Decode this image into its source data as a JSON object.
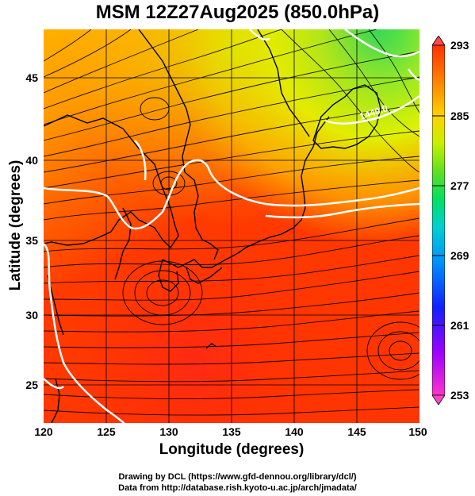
{
  "title": "MSM 12Z27Aug2025 (850.0hPa)",
  "xaxis": {
    "label": "Longitude (degrees)",
    "ticks": [
      "120",
      "125",
      "130",
      "135",
      "140",
      "145",
      "150"
    ],
    "range": [
      120,
      150
    ]
  },
  "yaxis": {
    "label": "Latitude  (degrees)",
    "ticks": [
      "25",
      "30",
      "35",
      "40",
      "45"
    ],
    "range": [
      22.4,
      47.6
    ]
  },
  "colorbar": {
    "ticks": [
      "293",
      "285",
      "277",
      "269",
      "261",
      "253"
    ],
    "range": [
      253,
      293
    ],
    "colors": [
      "#ff33cc",
      "#a000ff",
      "#1020ff",
      "#0090ff",
      "#00d0d0",
      "#00e060",
      "#60e020",
      "#c8f000",
      "#ffd000",
      "#ff8000",
      "#ff3000"
    ]
  },
  "contour": {
    "label": "1440.0",
    "color": "#ffffff"
  },
  "footer": {
    "line1": "Drawing by DCL (https://www.gfd-dennou.org/library/dcl/)",
    "line2": "Data from http://database.rish.kyoto-u.ac.jp/arch/jmadata/"
  }
}
